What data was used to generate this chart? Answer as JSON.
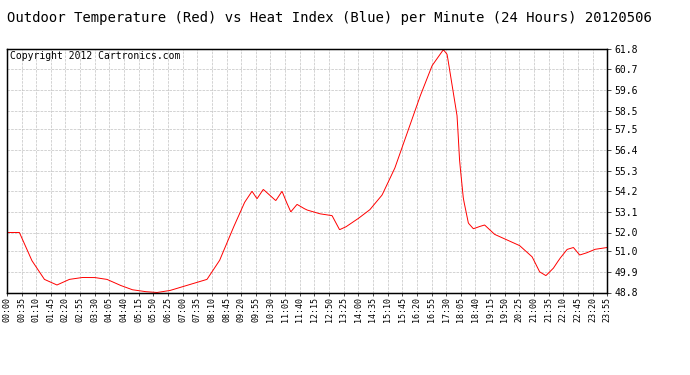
{
  "title": "Outdoor Temperature (Red) vs Heat Index (Blue) per Minute (24 Hours) 20120506",
  "copyright_text": "Copyright 2012 Cartronics.com",
  "y_min": 48.8,
  "y_max": 61.8,
  "y_ticks": [
    48.8,
    49.9,
    51.0,
    52.0,
    53.1,
    54.2,
    55.3,
    56.4,
    57.5,
    58.5,
    59.6,
    60.7,
    61.8
  ],
  "line_color": "#ff0000",
  "background_color": "#ffffff",
  "grid_color": "#bbbbbb",
  "x_labels": [
    "00:00",
    "00:35",
    "01:10",
    "01:45",
    "02:20",
    "02:55",
    "03:30",
    "04:05",
    "04:40",
    "05:15",
    "05:50",
    "06:25",
    "07:00",
    "07:35",
    "08:10",
    "08:45",
    "09:20",
    "09:55",
    "10:30",
    "11:05",
    "11:40",
    "12:15",
    "12:50",
    "13:25",
    "14:00",
    "14:35",
    "15:10",
    "15:45",
    "16:20",
    "16:55",
    "17:30",
    "18:05",
    "18:40",
    "19:15",
    "19:50",
    "20:25",
    "21:00",
    "21:35",
    "22:10",
    "22:45",
    "23:20",
    "23:55"
  ],
  "title_fontsize": 10,
  "copyright_fontsize": 7,
  "tick_fontsize": 7,
  "num_points": 1440,
  "figwidth": 6.9,
  "figheight": 3.75,
  "dpi": 100
}
